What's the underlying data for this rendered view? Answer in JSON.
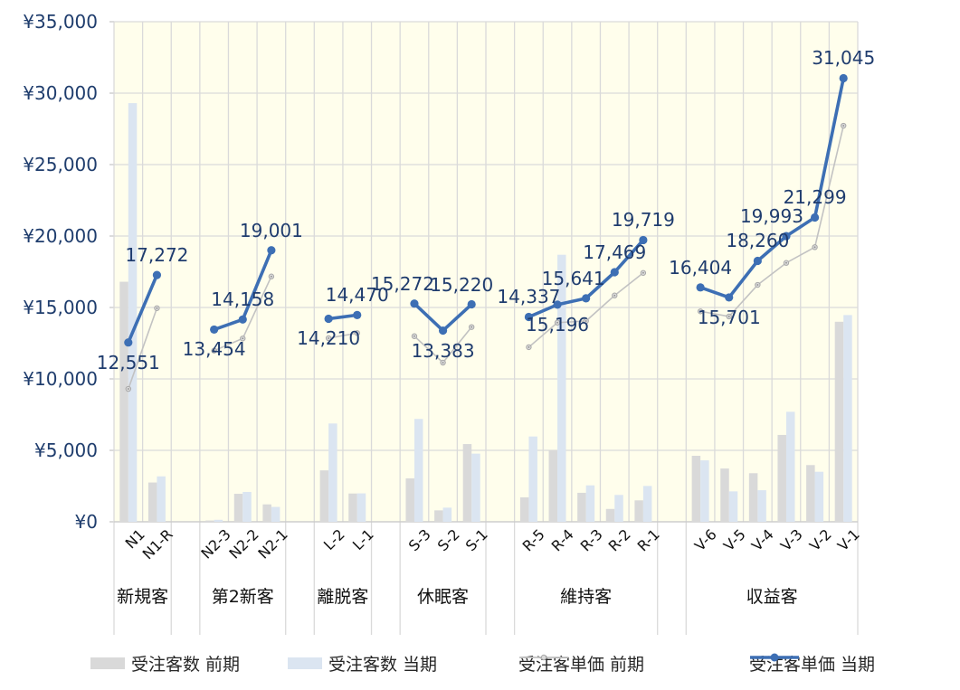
{
  "chart_data": {
    "type": "combo-bar-line",
    "title": "",
    "y_axis": {
      "min": 0,
      "max": 35000,
      "step": 5000,
      "tick_labels": [
        "¥0",
        "¥5,000",
        "¥10,000",
        "¥15,000",
        "¥20,000",
        "¥25,000",
        "¥30,000",
        "¥35,000"
      ]
    },
    "grid": true,
    "legend_position": "bottom",
    "groups": [
      {
        "label": "新規客",
        "categories": [
          "N1",
          "N1-R"
        ]
      },
      {
        "label": "第2新客",
        "categories": [
          "N2-3",
          "N2-2",
          "N2-1"
        ]
      },
      {
        "label": "離脱客",
        "categories": [
          "L-2",
          "L-1"
        ]
      },
      {
        "label": "休眠客",
        "categories": [
          "S-3",
          "S-2",
          "S-1"
        ]
      },
      {
        "label": "維持客",
        "categories": [
          "R-5",
          "R-4",
          "R-3",
          "R-2",
          "R-1"
        ]
      },
      {
        "label": "収益客",
        "categories": [
          "V-6",
          "V-5",
          "V-4",
          "V-3",
          "V-2",
          "V-1"
        ]
      }
    ],
    "categories": [
      "N1",
      "N1-R",
      "N2-3",
      "N2-2",
      "N2-1",
      "L-2",
      "L-1",
      "S-3",
      "S-2",
      "S-1",
      "R-5",
      "R-4",
      "R-3",
      "R-2",
      "R-1",
      "V-6",
      "V-5",
      "V-4",
      "V-3",
      "V-2",
      "V-1"
    ],
    "series": [
      {
        "name": "受注客数 前期",
        "type": "bar",
        "color": "#D9D9D9",
        "values": [
          16800,
          2750,
          90,
          1960,
          1220,
          3600,
          1980,
          3040,
          800,
          5440,
          1710,
          5020,
          2030,
          900,
          1500,
          4620,
          3730,
          3400,
          6080,
          3970,
          14000
        ]
      },
      {
        "name": "受注客数 当期",
        "type": "bar",
        "color": "#DBE5F1",
        "values": [
          29300,
          3180,
          140,
          2090,
          1040,
          6880,
          1990,
          7200,
          990,
          4770,
          5970,
          18690,
          2550,
          1880,
          2510,
          4300,
          2130,
          2210,
          7700,
          3500,
          14470
        ]
      },
      {
        "name": "受注客単価 前期",
        "type": "line",
        "color": "#C2C2C2",
        "values": [
          9300,
          14950,
          11980,
          12830,
          17170,
          12850,
          13210,
          12990,
          11140,
          13630,
          12220,
          13940,
          14050,
          15840,
          17420,
          14730,
          14370,
          16580,
          18120,
          19220,
          27720
        ]
      },
      {
        "name": "受注客単価 当期",
        "type": "line",
        "color": "#3D6FB4",
        "values": [
          12551,
          17272,
          13454,
          14158,
          19001,
          14210,
          14470,
          15272,
          13383,
          15220,
          14337,
          15196,
          15641,
          17469,
          19719,
          16404,
          15701,
          18260,
          19993,
          21299,
          31045
        ],
        "data_labels": [
          "12,551",
          "17,272",
          "13,454",
          "14,158",
          "19,001",
          "14,210",
          "14,470",
          "15,272",
          "13,383",
          "15,220",
          "14,337",
          "15,196",
          "15,641",
          "17,469",
          "19,719",
          "16,404",
          "15,701",
          "18,260",
          "19,993",
          "21,299",
          "31,045"
        ],
        "label_positions": [
          "below",
          "above",
          "below",
          "above",
          "above",
          "below",
          "above",
          "above",
          "below",
          "above",
          "above",
          "below",
          "above",
          "above",
          "above",
          "above",
          "below",
          "above",
          "above",
          "above",
          "above"
        ],
        "label_dx": [
          0,
          0,
          0,
          0,
          0,
          0,
          0,
          -13,
          0,
          -11,
          0,
          0,
          -14,
          0,
          0,
          0,
          0,
          0,
          -16,
          0,
          0
        ]
      }
    ]
  },
  "style": {
    "plot_bg": "#FFFEEC",
    "grid_color": "#DADADA",
    "axis_line_color": "#C9C9C9",
    "y_text_color": "#1F3D6D",
    "data_label_color": "#1F3C6E",
    "x_text_color": "#111111",
    "legend_text_color": "#262626",
    "gray_marker_fill": "#DADADA",
    "gray_marker_stroke": "#A8A8A8",
    "gray_marker_dot": "#8C8C8C"
  }
}
